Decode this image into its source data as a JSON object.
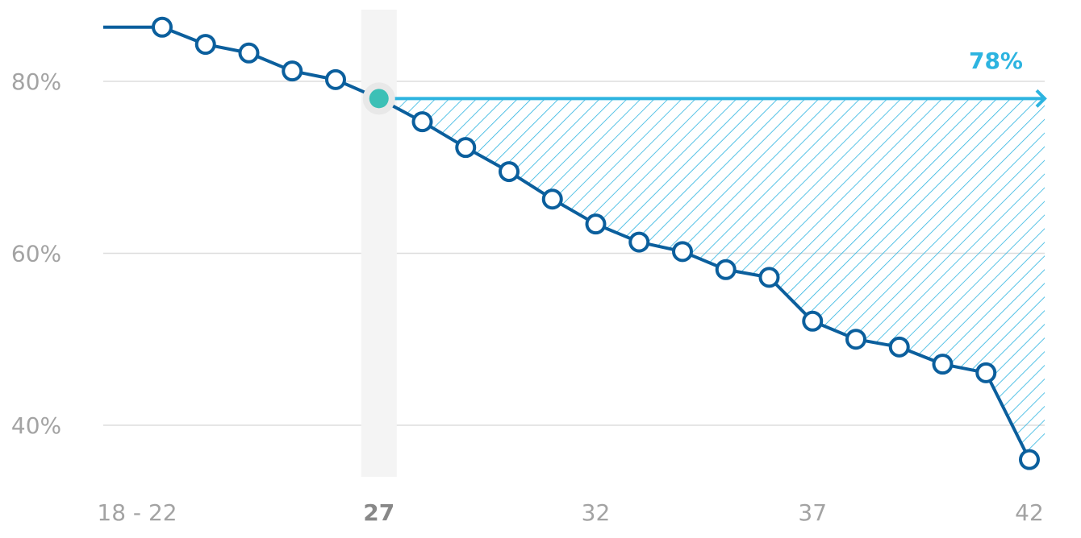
{
  "chart_data": {
    "type": "line",
    "categories": [
      "18 - 22",
      null,
      null,
      null,
      null,
      "27",
      null,
      null,
      null,
      null,
      "32",
      null,
      null,
      null,
      null,
      "37",
      null,
      null,
      null,
      null,
      "42"
    ],
    "values": [
      86.3,
      84.3,
      83.3,
      81.2,
      80.2,
      78.0,
      75.3,
      72.3,
      69.5,
      66.3,
      63.4,
      61.3,
      60.2,
      58.1,
      57.2,
      52.1,
      50.0,
      49.1,
      47.1,
      46.1,
      36.0
    ],
    "color": "#0b5f9d",
    "highlight": 5,
    "highlight_color": "#3cc0b6",
    "target": {
      "value": 78,
      "label": "78%",
      "color": "#2db4e0"
    },
    "ylim": [
      34,
      88
    ],
    "yticks": [
      {
        "value": 40,
        "label": "40%"
      },
      {
        "value": 60,
        "label": "60%"
      },
      {
        "value": 80,
        "label": "80%"
      }
    ],
    "grid": true
  }
}
